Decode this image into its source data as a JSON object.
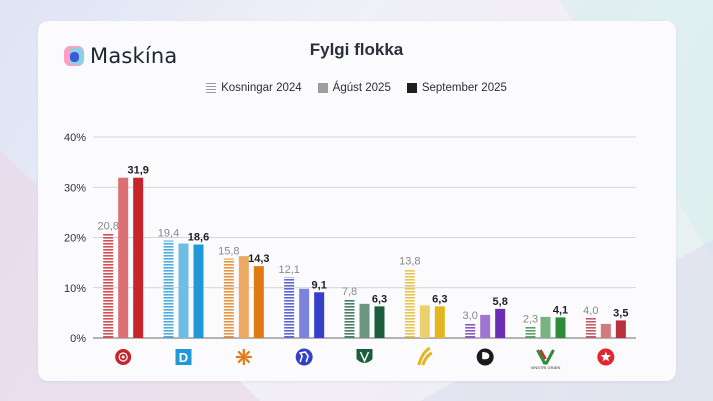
{
  "brand": {
    "name": "Maskína"
  },
  "chart_data": {
    "type": "bar",
    "title": "Fylgi flokka",
    "xlabel": "",
    "ylabel": "",
    "ylim": [
      0,
      40
    ],
    "yticks": [
      "0%",
      "10%",
      "20%",
      "30%",
      "40%"
    ],
    "legend_position": "top",
    "categories": [
      "Samfylkingin",
      "Sjálfstæðisflokkurinn",
      "Viðreisn",
      "Framsóknarflokkurinn",
      "Miðflokkurinn",
      "Flokkur fólksins",
      "Píratar",
      "Vinstri græn",
      "Sósíalistaflokkurinn"
    ],
    "category_icon_names": [
      "rose-icon",
      "d-icon",
      "sun-icon",
      "horse-icon",
      "shield-icon",
      "wheat-icon",
      "pirate-flag-icon",
      "vg-icon",
      "star-icon"
    ],
    "category_icon_captions": [
      "",
      "",
      "",
      "",
      "",
      "",
      "",
      "VINSTRI GRÆN",
      ""
    ],
    "colors": [
      "#c8242b",
      "#1f9ad6",
      "#e07b12",
      "#3540c8",
      "#1b5e3b",
      "#e3b620",
      "#6a2fb4",
      "#2e8b3b",
      "#b5313c"
    ],
    "series": [
      {
        "name": "Kosningar 2024",
        "values": [
          20.8,
          19.4,
          15.8,
          12.1,
          7.8,
          13.8,
          3.0,
          2.3,
          4.0
        ],
        "labels": [
          "20,8",
          "19,4",
          "15,8",
          "12,1",
          "7,8",
          "13,8",
          "3,0",
          "2,3",
          "4,0"
        ]
      },
      {
        "name": "Ágúst 2025",
        "values": [
          31.9,
          18.8,
          16.3,
          9.8,
          6.8,
          6.5,
          4.6,
          4.2,
          2.8
        ],
        "labels": [
          "",
          "",
          "",
          "",
          "",
          "",
          "",
          "",
          ""
        ]
      },
      {
        "name": "September 2025",
        "values": [
          31.9,
          18.6,
          14.3,
          9.1,
          6.3,
          6.3,
          5.8,
          4.1,
          3.5
        ],
        "labels": [
          "31,9",
          "18,6",
          "14,3",
          "9,1",
          "6,3",
          "6,3",
          "5,8",
          "4,1",
          "3,5"
        ]
      }
    ]
  }
}
